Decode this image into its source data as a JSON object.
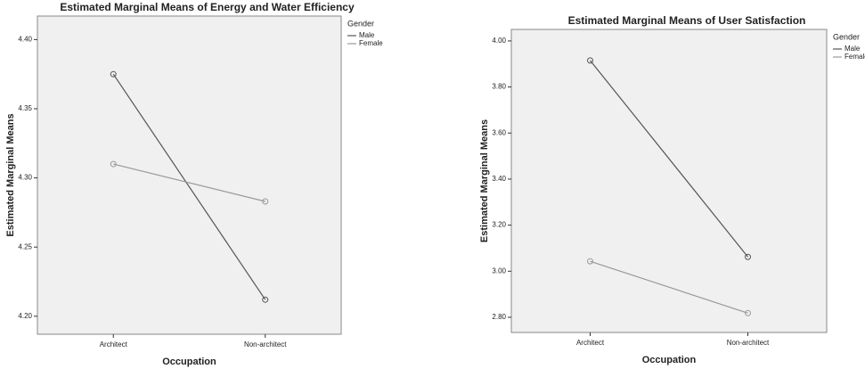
{
  "chart_data": [
    {
      "type": "line",
      "title": "Estimated Marginal Means of Energy and Water Efficiency",
      "x_label": "Occupation",
      "y_label": "Estimated Marginal Means",
      "categories": [
        "Architect",
        "Non-architect"
      ],
      "series": [
        {
          "name": "Male",
          "color": "#555555",
          "values": [
            4.375,
            4.212
          ]
        },
        {
          "name": "Female",
          "color": "#999999",
          "values": [
            4.31,
            4.283
          ]
        }
      ],
      "legend_title": "Gender",
      "legend": "right",
      "ylim": [
        4.187,
        4.417
      ],
      "yticks": [
        {
          "value": 4.2,
          "label": "4.20"
        },
        {
          "value": 4.25,
          "label": "4.25"
        },
        {
          "value": 4.3,
          "label": "4.30"
        },
        {
          "value": 4.35,
          "label": "4.35"
        },
        {
          "value": 4.4,
          "label": "4.40"
        }
      ]
    },
    {
      "type": "line",
      "title": "Estimated Marginal Means of User Satisfaction",
      "x_label": "Occupation",
      "y_label": "Estimated Marginal Means",
      "categories": [
        "Architect",
        "Non-architect"
      ],
      "series": [
        {
          "name": "Male",
          "color": "#555555",
          "values": [
            3.915,
            3.062
          ]
        },
        {
          "name": "Female",
          "color": "#999999",
          "values": [
            3.043,
            2.818
          ]
        }
      ],
      "legend_title": "Gender",
      "legend": "right",
      "ylim": [
        2.734,
        4.05
      ],
      "yticks": [
        {
          "value": 2.8,
          "label": "2.80"
        },
        {
          "value": 3.0,
          "label": "3.00"
        },
        {
          "value": 3.2,
          "label": "3.20"
        },
        {
          "value": 3.4,
          "label": "3.40"
        },
        {
          "value": 3.6,
          "label": "3.60"
        },
        {
          "value": 3.8,
          "label": "3.80"
        },
        {
          "value": 4.0,
          "label": "4.00"
        }
      ]
    }
  ]
}
